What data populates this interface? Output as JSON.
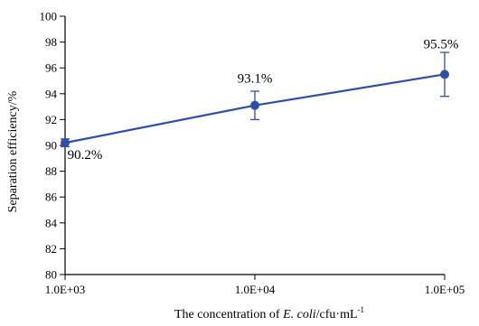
{
  "chart_data": {
    "type": "line",
    "x": [
      "1.0E+03",
      "1.0E+04",
      "1.0E+05"
    ],
    "x_values": [
      1000,
      10000,
      100000
    ],
    "x_scale": "log",
    "series": [
      {
        "values": [
          90.2,
          93.1,
          95.5
        ],
        "error_low": [
          0.3,
          1.1,
          1.7
        ],
        "error_high": [
          0.3,
          1.1,
          1.7
        ],
        "color": "#2e4fa6"
      }
    ],
    "data_labels": [
      "90.2%",
      "93.1%",
      "95.5%"
    ],
    "xlabel": {
      "prefix": "The concentration of ",
      "italic": "E. coli",
      "suffix": "/cfu·mL",
      "superscript": "-1"
    },
    "ylabel": "Separation efficiency/%",
    "ylim": [
      80,
      100
    ],
    "yticks": [
      80,
      82,
      84,
      86,
      88,
      90,
      92,
      94,
      96,
      98,
      100
    ],
    "grid": false,
    "legend": "none"
  }
}
